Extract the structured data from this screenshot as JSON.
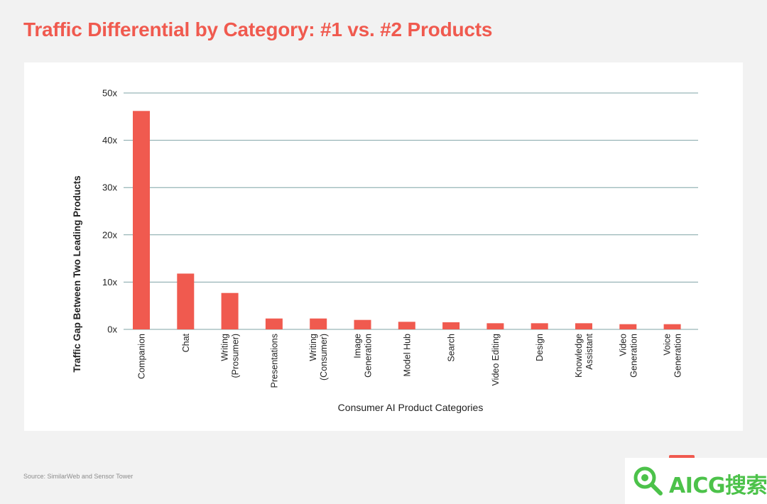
{
  "title": "Traffic Differential by Category: #1 vs. #2 Products",
  "source": "Source: SimilarWeb and Sensor Tower",
  "watermark": "AICG搜索",
  "colors": {
    "bar": "#f05a4f",
    "grid": "#7fa3a6",
    "axis_text": "#222222"
  },
  "chart_data": {
    "type": "bar",
    "title": "Traffic Differential by Category: #1 vs. #2 Products",
    "xlabel": "Consumer AI Product Categories",
    "ylabel": "Traffic Gap Between Two Leading Products",
    "ylim": [
      0,
      50
    ],
    "yticks": [
      0,
      10,
      20,
      30,
      40,
      50
    ],
    "ytick_labels": [
      "0x",
      "10x",
      "20x",
      "30x",
      "40x",
      "50x"
    ],
    "grid": true,
    "categories": [
      "Companion",
      "Chat",
      "Writing (Prosumer)",
      "Presentations",
      "Writing (Consumer)",
      "Image Generation",
      "Model Hub",
      "Search",
      "Video Editing",
      "Design",
      "Knowledge Assistant",
      "Video Generation",
      "Voice Generation"
    ],
    "category_lines": [
      [
        "Companion"
      ],
      [
        "Chat"
      ],
      [
        "Writing",
        "(Prosumer)"
      ],
      [
        "Presentations"
      ],
      [
        "Writing",
        "(Consumer)"
      ],
      [
        "Image",
        "Generation"
      ],
      [
        "Model Hub"
      ],
      [
        "Search"
      ],
      [
        "Video Editing"
      ],
      [
        "Design"
      ],
      [
        "Knowledge",
        "Assistant"
      ],
      [
        "Video",
        "Generation"
      ],
      [
        "Voice",
        "Generation"
      ]
    ],
    "values": [
      46.2,
      11.8,
      7.7,
      2.3,
      2.3,
      2.0,
      1.6,
      1.5,
      1.3,
      1.3,
      1.3,
      1.1,
      1.1
    ]
  }
}
